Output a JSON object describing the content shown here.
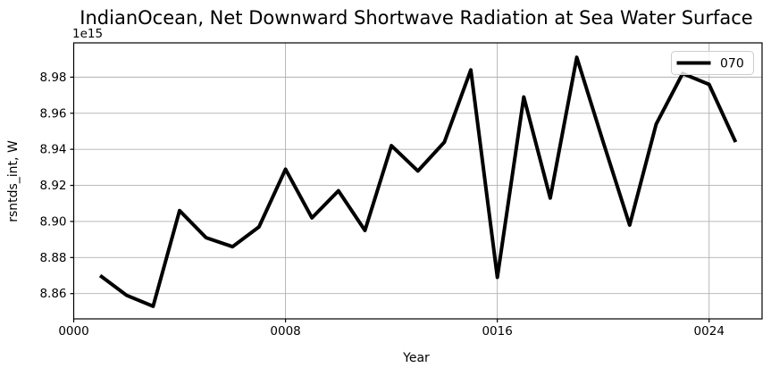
{
  "chart_data": {
    "type": "line",
    "title": "IndianOcean, Net Downward Shortwave Radiation at Sea Water Surface",
    "xlabel": "Year",
    "ylabel": "rsntds_int, W",
    "y_offset_label": "1e15",
    "value_units": "1e15 W",
    "x": [
      1,
      2,
      3,
      4,
      5,
      6,
      7,
      8,
      9,
      10,
      11,
      12,
      13,
      14,
      15,
      16,
      17,
      18,
      19,
      20,
      21,
      22,
      23,
      24,
      25
    ],
    "series": [
      {
        "name": "070",
        "color": "#000000",
        "linewidth": 4,
        "values": [
          8.87,
          8.859,
          8.853,
          8.906,
          8.891,
          8.886,
          8.897,
          8.929,
          8.902,
          8.917,
          8.895,
          8.942,
          8.928,
          8.944,
          8.984,
          8.869,
          8.969,
          8.913,
          8.991,
          8.944,
          8.898,
          8.954,
          8.982,
          8.976,
          8.944
        ]
      }
    ],
    "xlim": [
      0,
      26
    ],
    "ylim": [
      8.846,
      8.999
    ],
    "xticks": {
      "values": [
        0,
        8,
        16,
        24
      ],
      "labels": [
        "0000",
        "0008",
        "0016",
        "0024"
      ]
    },
    "yticks": {
      "values": [
        8.86,
        8.88,
        8.9,
        8.92,
        8.94,
        8.96,
        8.98
      ],
      "labels": [
        "8.86",
        "8.88",
        "8.90",
        "8.92",
        "8.94",
        "8.96",
        "8.98"
      ]
    },
    "grid": true,
    "legend": {
      "position": "upper right",
      "entries": [
        {
          "label": "070",
          "color": "#000000"
        }
      ]
    },
    "colors": {
      "line": "#000000",
      "grid": "#b0b0b0",
      "spine": "#000000",
      "background": "#ffffff",
      "legend_border": "#cccccc",
      "legend_background": "#ffffff"
    }
  }
}
